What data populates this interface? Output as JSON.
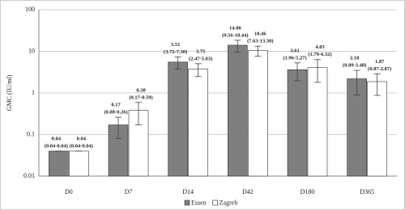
{
  "chart_data": {
    "type": "bar",
    "y_label": "GMC (IU/ml)",
    "categories": [
      "D0",
      "D7",
      "D14",
      "D42",
      "D180",
      "D365"
    ],
    "series": [
      {
        "name": "Essen",
        "color": "#7f7f7f",
        "values": [
          0.04,
          0.17,
          5.51,
          14.0,
          3.61,
          2.18
        ],
        "value_labels": [
          "0.04",
          "0.17",
          "5.51",
          "14.00",
          "3.61",
          "2.18"
        ],
        "ci_low": [
          0.04,
          0.08,
          3.72,
          9.56,
          1.96,
          0.89
        ],
        "ci_high": [
          0.04,
          0.26,
          7.3,
          18.44,
          5.27,
          3.48
        ],
        "ci_labels": [
          "(0.04-0.04)",
          "(0.08-0.26)",
          "(3.72-7.30)",
          "(9.56-18.44)",
          "(1.96-5.27)",
          "(0.89-3.48)"
        ]
      },
      {
        "name": "Zagreb",
        "color": "#ffffff",
        "values": [
          0.04,
          0.38,
          3.75,
          10.46,
          4.05,
          1.87
        ],
        "value_labels": [
          "0.04",
          "0.38",
          "3.75",
          "10.46",
          "4.05",
          "1.87"
        ],
        "ci_low": [
          0.04,
          0.17,
          2.47,
          7.63,
          1.79,
          0.87
        ],
        "ci_high": [
          0.04,
          0.59,
          5.03,
          13.3,
          6.32,
          2.87
        ],
        "ci_labels": [
          "(0.04-0.04)",
          "(0.17-0.59)",
          "(2.47-5.03)",
          "(7.63-13.30)",
          "(1.79-6.32)",
          "(0.87-2.87)"
        ]
      }
    ],
    "log_scale": true,
    "ylim": [
      0.01,
      100
    ],
    "yticks": [
      0.01,
      0.1,
      1,
      10,
      100
    ],
    "grid": true,
    "legend": "bottom"
  }
}
